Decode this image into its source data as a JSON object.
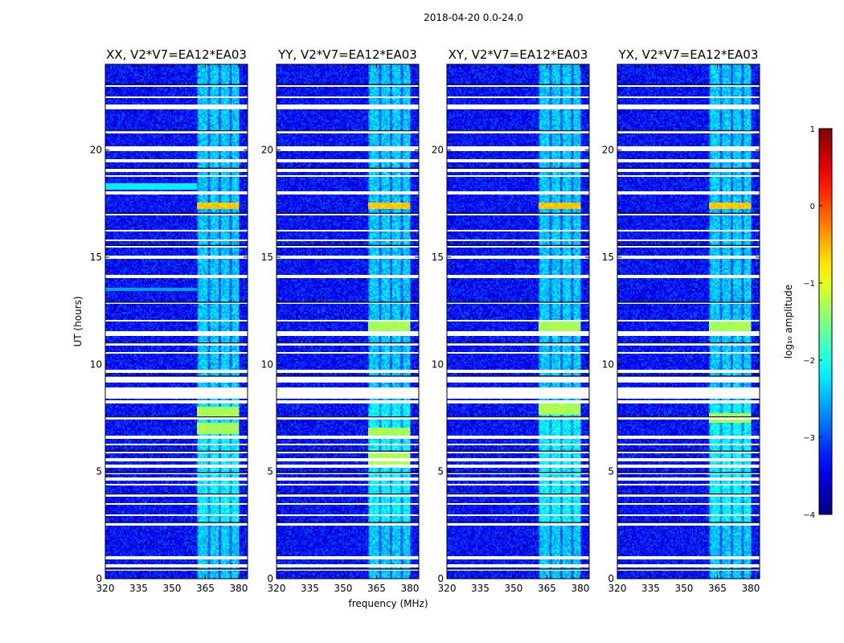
{
  "chart_data": {
    "type": "heatmap",
    "suptitle": "2018-04-20 0.0-24.0",
    "xlabel": "frequency (MHz)",
    "ylabel": "UT (hours)",
    "xlim": [
      320,
      384
    ],
    "ylim": [
      0,
      24
    ],
    "xticks": [
      320,
      335,
      350,
      365,
      380
    ],
    "yticks": [
      0,
      5,
      10,
      15,
      20
    ],
    "colorbar": {
      "label": "log₁₀ amplitude",
      "range": [
        -4,
        1
      ],
      "ticks": [
        1,
        0,
        -1,
        -2,
        -3,
        -4
      ],
      "colormap": "jet"
    },
    "panels": [
      {
        "title": "XX, V2*V7=EA12*EA03",
        "rfi_flare_ut": 17.4,
        "rfi_strong_ut": [
          7.8,
          7.0
        ]
      },
      {
        "title": "YY, V2*V7=EA12*EA03",
        "rfi_flare_ut": 17.4,
        "rfi_strong_ut": [
          11.8,
          6.8,
          5.6
        ]
      },
      {
        "title": "XY, V2*V7=EA12*EA03",
        "rfi_flare_ut": 17.4,
        "rfi_strong_ut": [
          11.8,
          7.9
        ]
      },
      {
        "title": "YX, V2*V7=EA12*EA03",
        "rfi_flare_ut": 17.4,
        "rfi_strong_ut": [
          11.8,
          7.5
        ]
      }
    ],
    "rfi_band_mhz": [
      361,
      380
    ],
    "flagged_ut_ranges": [
      [
        0.35,
        0.45
      ],
      [
        0.55,
        0.65
      ],
      [
        0.9,
        1.05
      ],
      [
        2.45,
        2.62
      ],
      [
        2.9,
        3.0
      ],
      [
        3.45,
        3.55
      ],
      [
        3.85,
        3.95
      ],
      [
        4.35,
        4.45
      ],
      [
        4.6,
        4.75
      ],
      [
        4.85,
        4.95
      ],
      [
        5.2,
        5.3
      ],
      [
        5.5,
        5.6
      ],
      [
        5.85,
        5.95
      ],
      [
        6.2,
        6.3
      ],
      [
        6.55,
        6.65
      ],
      [
        7.45,
        7.55
      ],
      [
        8.2,
        8.3
      ],
      [
        8.4,
        8.9
      ],
      [
        9.15,
        9.45
      ],
      [
        9.6,
        9.75
      ],
      [
        10.5,
        10.6
      ],
      [
        10.9,
        11.0
      ],
      [
        11.35,
        11.55
      ],
      [
        12.0,
        12.1
      ],
      [
        12.8,
        12.9
      ],
      [
        14.05,
        14.15
      ],
      [
        14.95,
        15.05
      ],
      [
        15.45,
        15.55
      ],
      [
        15.75,
        15.85
      ],
      [
        16.2,
        16.3
      ],
      [
        16.95,
        17.05
      ],
      [
        17.95,
        18.05
      ],
      [
        18.75,
        18.85
      ],
      [
        19.0,
        19.15
      ],
      [
        19.45,
        19.55
      ],
      [
        19.95,
        20.15
      ],
      [
        20.8,
        20.9
      ],
      [
        21.9,
        22.1
      ],
      [
        22.4,
        22.5
      ],
      [
        22.95,
        23.05
      ]
    ]
  }
}
